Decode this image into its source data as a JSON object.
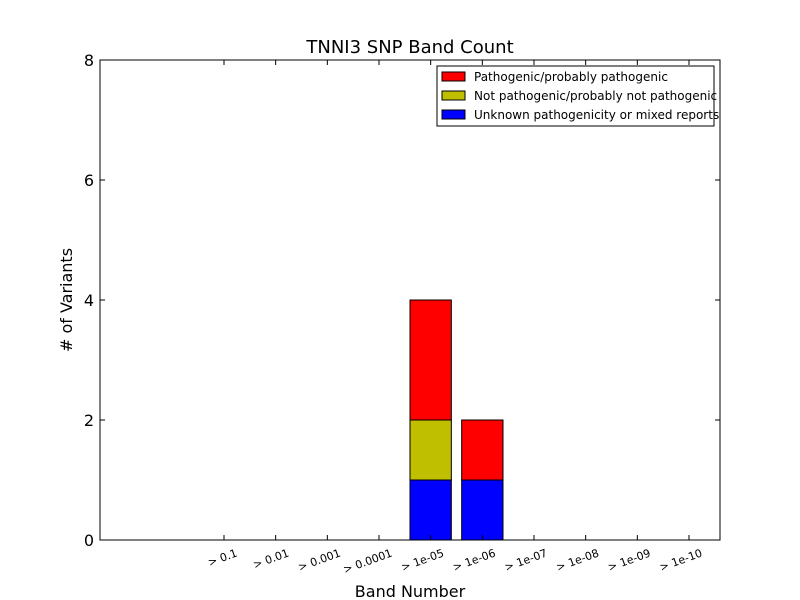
{
  "chart_data": {
    "type": "bar",
    "stacked": true,
    "title": "TNNI3 SNP Band Count",
    "xlabel": "Band Number",
    "ylabel": "# of Variants",
    "ylim": [
      0,
      8
    ],
    "yticks": [
      "0",
      "2",
      "4",
      "6",
      "8"
    ],
    "categories": [
      "> 0.1",
      "> 0.01",
      "> 0.001",
      "> 0.0001",
      "> 1e-05",
      "> 1e-06",
      "> 1e-07",
      "> 1e-08",
      "> 1e-09",
      "> 1e-10"
    ],
    "series": [
      {
        "name": "Unknown pathogenicity or mixed reports",
        "color": "#0000ff",
        "values": [
          0,
          0,
          0,
          0,
          1,
          1,
          0,
          0,
          0,
          0
        ]
      },
      {
        "name": "Not pathogenic/probably not pathogenic",
        "color": "#bfbf00",
        "values": [
          0,
          0,
          0,
          0,
          1,
          0,
          0,
          0,
          0,
          0
        ]
      },
      {
        "name": "Pathogenic/probably pathogenic",
        "color": "#ff0000",
        "values": [
          0,
          0,
          0,
          0,
          2,
          1,
          0,
          0,
          0,
          0
        ]
      }
    ],
    "legend_order": [
      2,
      1,
      0
    ],
    "legend_position": "top-right",
    "grid": false
  }
}
